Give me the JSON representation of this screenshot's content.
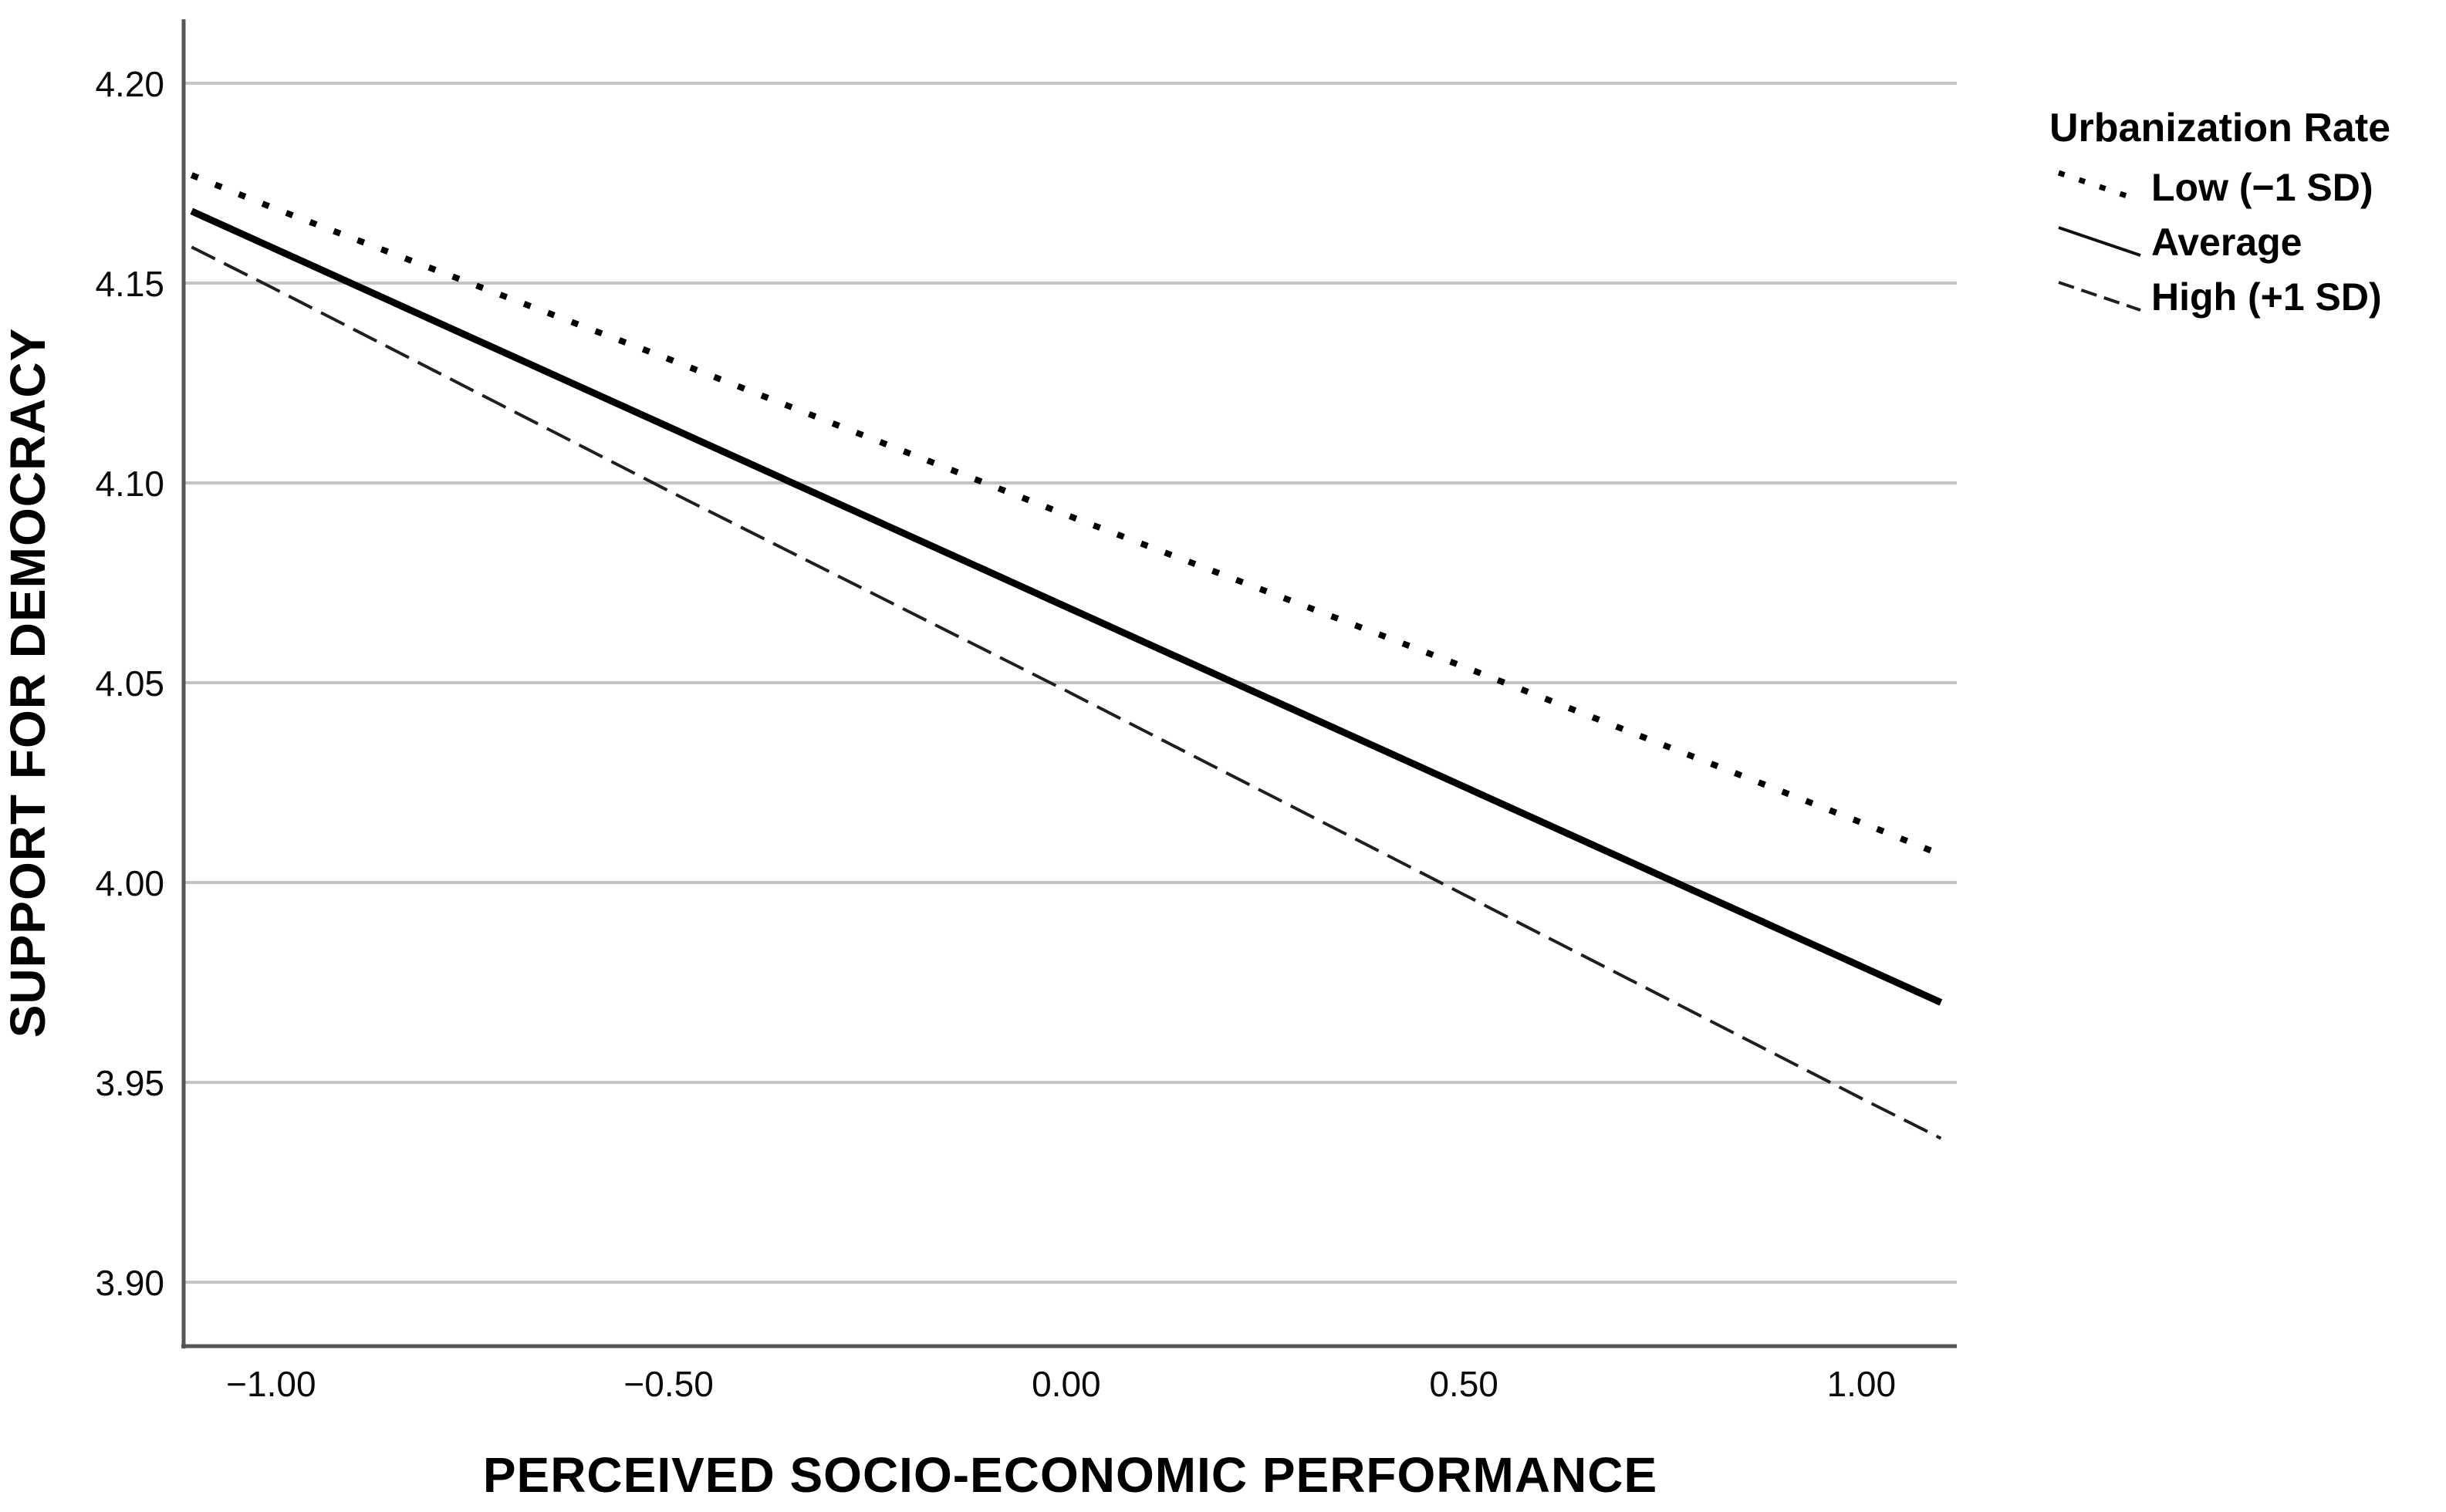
{
  "chart_data": {
    "type": "line",
    "title": "",
    "xlabel": "PERCEIVED SOCIO-ECONOMIC PERFORMANCE",
    "ylabel": "SUPPORT FOR DEMOCRACY",
    "xlim": [
      -1.11,
      1.12
    ],
    "ylim": [
      3.884,
      4.216
    ],
    "x_ticks": [
      -1.0,
      -0.5,
      0.0,
      0.5,
      1.0
    ],
    "x_tick_labels": [
      "−1.00",
      "−0.50",
      "0.00",
      "0.50",
      "1.00"
    ],
    "y_ticks": [
      3.9,
      3.95,
      4.0,
      4.05,
      4.1,
      4.15,
      4.2
    ],
    "y_tick_labels": [
      "3.90",
      "3.95",
      "4.00",
      "4.05",
      "4.10",
      "4.15",
      "4.20"
    ],
    "grid": "horizontal-only",
    "legend": {
      "title": "Urbanization Rate",
      "position": "outside-top-right"
    },
    "x": [
      -1.1,
      -1.0,
      -0.5,
      0.0,
      0.5,
      1.0,
      1.1
    ],
    "series": [
      {
        "name": "Low (−1 SD)",
        "line_style": "dotted",
        "color": "#000000",
        "values": [
          4.177,
          4.169,
          4.131,
          4.092,
          4.054,
          4.015,
          4.007
        ]
      },
      {
        "name": "Average",
        "line_style": "solid",
        "color": "#000000",
        "values": [
          4.168,
          4.159,
          4.114,
          4.069,
          4.024,
          3.979,
          3.97
        ]
      },
      {
        "name": "High (+1 SD)",
        "line_style": "dashed",
        "color": "#1f1f1f",
        "values": [
          4.159,
          4.149,
          4.098,
          4.048,
          3.997,
          3.946,
          3.936
        ]
      }
    ]
  },
  "colors": {
    "background": "#ffffff",
    "gridline": "#c3c3c7",
    "axis": "#555558",
    "text": "#000000"
  }
}
